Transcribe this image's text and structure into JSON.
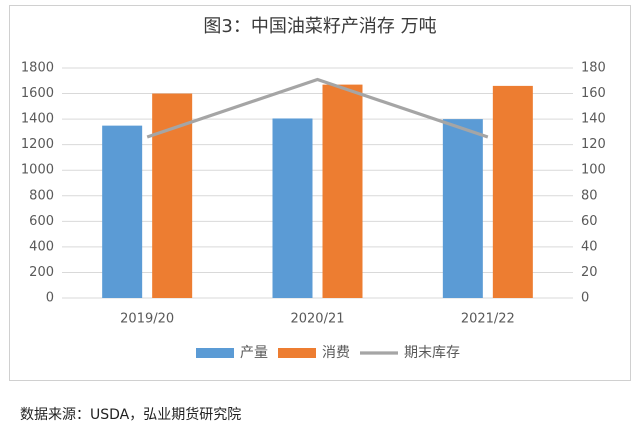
{
  "title": "图3：中国油菜籽产消存  万吨",
  "source": "数据来源：USDA，弘业期货研究院",
  "chart_data": {
    "type": "bar",
    "categories": [
      "2019/20",
      "2020/21",
      "2021/22"
    ],
    "series": [
      {
        "name": "产量",
        "kind": "bar",
        "axis": "left",
        "color": "#5b9bd5",
        "values": [
          1349,
          1405,
          1400
        ]
      },
      {
        "name": "消费",
        "kind": "bar",
        "axis": "left",
        "color": "#ed7d31",
        "values": [
          1600,
          1670,
          1660
        ]
      },
      {
        "name": "期末库存",
        "kind": "line",
        "axis": "right",
        "color": "#a5a5a5",
        "values": [
          126,
          171,
          126
        ]
      }
    ],
    "y_left": {
      "min": 0,
      "max": 1800,
      "ticks": [
        0,
        200,
        400,
        600,
        800,
        1000,
        1200,
        1400,
        1600,
        1800
      ]
    },
    "y_right": {
      "min": 0,
      "max": 180,
      "ticks": [
        0,
        20,
        40,
        60,
        80,
        100,
        120,
        140,
        160,
        180
      ]
    },
    "grid": true,
    "legend": "bottom"
  }
}
